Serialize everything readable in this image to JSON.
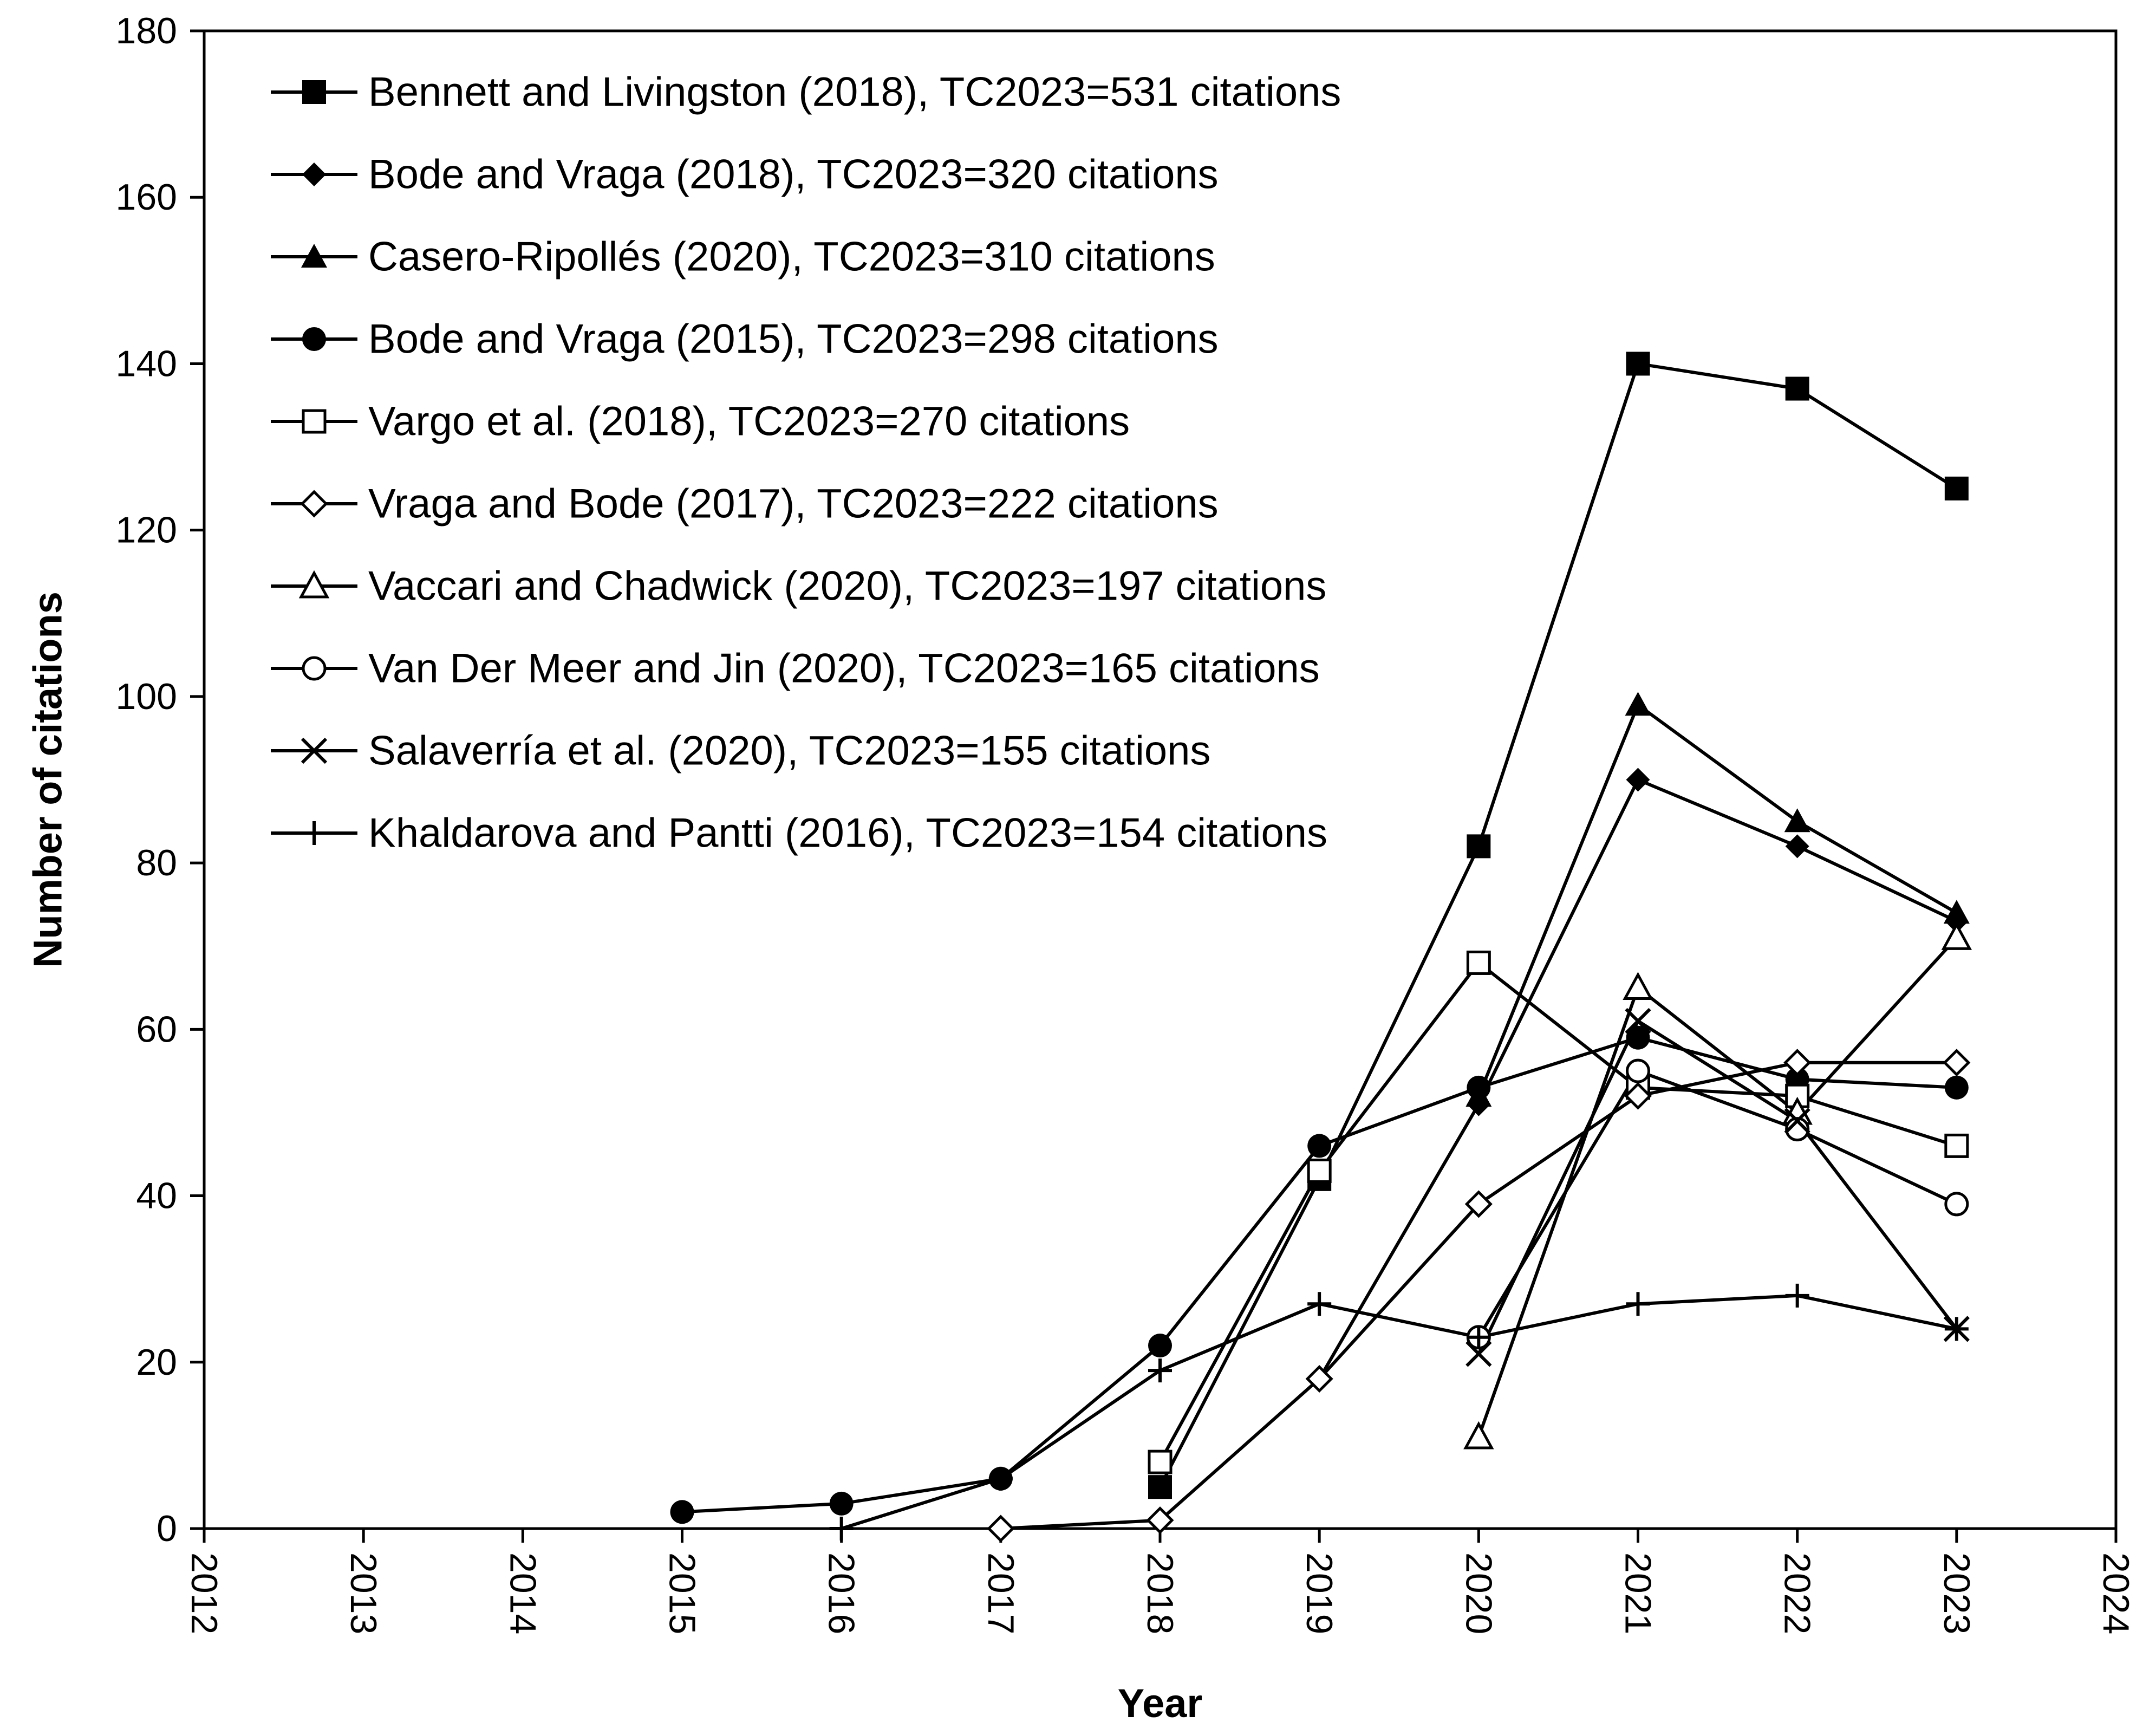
{
  "chart_data": {
    "type": "line",
    "title": "",
    "xlabel": "Year",
    "ylabel": "Number of citations",
    "xlim": [
      2012,
      2024
    ],
    "ylim": [
      0,
      180
    ],
    "xticks": [
      "2012",
      "2013",
      "2014",
      "2015",
      "2016",
      "2017",
      "2018",
      "2019",
      "2020",
      "2021",
      "2022",
      "2023",
      "2024"
    ],
    "yticks": [
      "0",
      "20",
      "40",
      "60",
      "80",
      "100",
      "120",
      "140",
      "160",
      "180"
    ],
    "grid": false,
    "legend_position": "top-left",
    "series": [
      {
        "name": "Bennett and Livingston (2018), TC2023=531 citations",
        "marker": "square-filled",
        "x": [
          2018,
          2019,
          2020,
          2021,
          2022,
          2023
        ],
        "y": [
          5,
          42,
          82,
          140,
          137,
          125
        ]
      },
      {
        "name": "Bode and Vraga (2018), TC2023=320 citations",
        "marker": "diamond-filled",
        "x": [
          2019,
          2020,
          2021,
          2022,
          2023
        ],
        "y": [
          18,
          51,
          90,
          82,
          73
        ]
      },
      {
        "name": "Casero-Ripollés (2020), TC2023=310 citations",
        "marker": "triangle-filled",
        "x": [
          2020,
          2021,
          2022,
          2023
        ],
        "y": [
          52,
          99,
          85,
          74
        ]
      },
      {
        "name": "Bode and Vraga (2015), TC2023=298 citations",
        "marker": "circle-filled",
        "x": [
          2015,
          2016,
          2017,
          2018,
          2019,
          2020,
          2021,
          2022,
          2023
        ],
        "y": [
          2,
          3,
          6,
          22,
          46,
          53,
          59,
          54,
          53
        ]
      },
      {
        "name": "Vargo et al. (2018), TC2023=270 citations",
        "marker": "square-open",
        "x": [
          2018,
          2019,
          2020,
          2021,
          2022,
          2023
        ],
        "y": [
          8,
          43,
          68,
          53,
          52,
          46
        ]
      },
      {
        "name": "Vraga and Bode (2017), TC2023=222 citations",
        "marker": "diamond-open",
        "x": [
          2017,
          2018,
          2019,
          2020,
          2021,
          2022,
          2023
        ],
        "y": [
          0,
          1,
          18,
          39,
          52,
          56,
          56
        ]
      },
      {
        "name": "Vaccari and Chadwick (2020), TC2023=197 citations",
        "marker": "triangle-open",
        "x": [
          2020,
          2021,
          2022,
          2023
        ],
        "y": [
          11,
          65,
          50,
          71
        ]
      },
      {
        "name": "Van Der Meer and Jin (2020), TC2023=165 citations",
        "marker": "circle-open",
        "x": [
          2020,
          2021,
          2022,
          2023
        ],
        "y": [
          23,
          55,
          48,
          39
        ]
      },
      {
        "name": "Salaverría et al. (2020), TC2023=155 citations",
        "marker": "x",
        "x": [
          2020,
          2021,
          2022,
          2023
        ],
        "y": [
          21,
          61,
          49,
          24
        ]
      },
      {
        "name": "Khaldarova and Pantti (2016), TC2023=154 citations",
        "marker": "plus",
        "x": [
          2016,
          2017,
          2018,
          2019,
          2020,
          2021,
          2022,
          2023
        ],
        "y": [
          0,
          6,
          19,
          27,
          23,
          27,
          28,
          24
        ]
      }
    ]
  }
}
